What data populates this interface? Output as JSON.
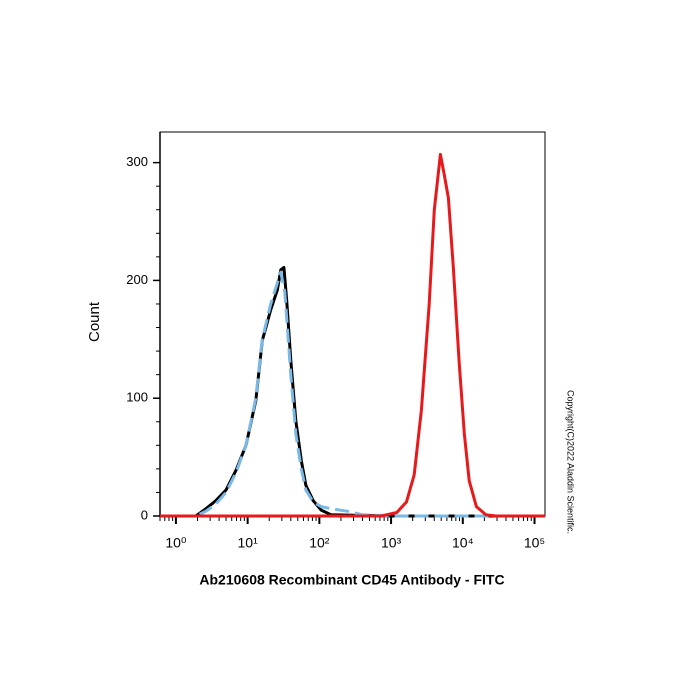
{
  "chart_data": {
    "type": "line",
    "xlabel": "Ab210608 Recombinant CD45 Antibody - FITC",
    "ylabel": "Count",
    "annotation": "Copyright(C)2022 Aladdin Scientific.",
    "xscale": "log",
    "xlim": [
      0.6,
      140000
    ],
    "xticks": [
      {
        "value": 1,
        "label": "10⁰"
      },
      {
        "value": 10,
        "label": "10¹"
      },
      {
        "value": 100,
        "label": "10²"
      },
      {
        "value": 1000,
        "label": "10³"
      },
      {
        "value": 10000,
        "label": "10⁴"
      },
      {
        "value": 100000,
        "label": "10⁵"
      }
    ],
    "ylim": [
      0,
      326
    ],
    "yticks": [
      0,
      100,
      200,
      300
    ],
    "series": [
      {
        "color": "#000000",
        "linestyle": "solid",
        "x": [
          1.5,
          1.9,
          2.6,
          3.6,
          5,
          6.9,
          9.5,
          13,
          16,
          21,
          26,
          29,
          32,
          35,
          40,
          47,
          56,
          65,
          82,
          106,
          146,
          1000,
          10000,
          100000
        ],
        "values": [
          0,
          0,
          6,
          13,
          22,
          39,
          60,
          98,
          149,
          175,
          192,
          209,
          211,
          183,
          132,
          81,
          47,
          26,
          13,
          5,
          1,
          0,
          0,
          0
        ]
      },
      {
        "color": "#7ab8e6",
        "linestyle": "dashed",
        "x": [
          0.6,
          1.9,
          2.6,
          3.6,
          5,
          6.9,
          9.5,
          13,
          16,
          21,
          26,
          29,
          33,
          40,
          47,
          56,
          65,
          82,
          106,
          150,
          250,
          400,
          1000,
          10000,
          140000
        ],
        "values": [
          0,
          0,
          4,
          10,
          20,
          37,
          60,
          100,
          150,
          180,
          198,
          207,
          190,
          120,
          70,
          40,
          22,
          12,
          8,
          6,
          4,
          1,
          0,
          0,
          0
        ]
      },
      {
        "color": "#e8191b",
        "linestyle": "solid",
        "x": [
          0.6,
          730,
          1200,
          1640,
          2100,
          2650,
          3400,
          4000,
          4870,
          5500,
          6300,
          7400,
          8900,
          10500,
          12300,
          15500,
          21000,
          29000,
          140000
        ],
        "values": [
          0,
          0,
          3,
          12,
          35,
          90,
          180,
          260,
          307,
          290,
          270,
          210,
          130,
          70,
          30,
          8,
          1,
          0,
          0
        ]
      }
    ]
  }
}
